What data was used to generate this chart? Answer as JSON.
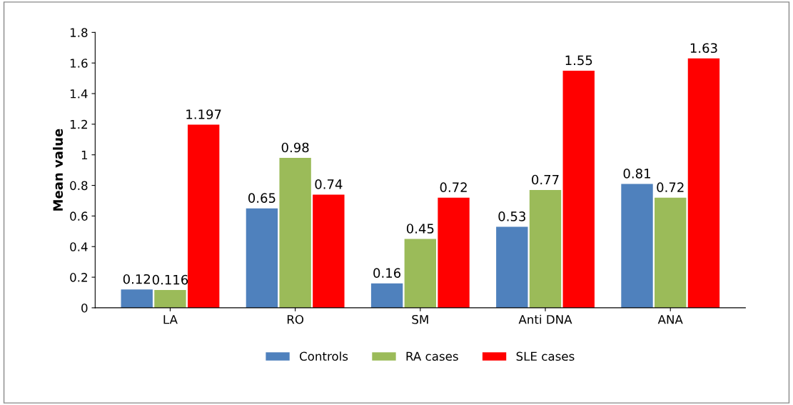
{
  "chart_data": {
    "type": "bar",
    "ylabel": "Mean value",
    "categories": [
      "LA",
      "RO",
      "SM",
      "Anti DNA",
      "ANA"
    ],
    "series": [
      {
        "name": "Controls",
        "color": "#4f81bd",
        "values": [
          0.12,
          0.65,
          0.16,
          0.53,
          0.81
        ]
      },
      {
        "name": "RA cases",
        "color": "#9bbb59",
        "values": [
          0.116,
          0.98,
          0.45,
          0.77,
          0.72
        ]
      },
      {
        "name": "SLE cases",
        "color": "#ff0000",
        "values": [
          1.197,
          0.74,
          0.72,
          1.55,
          1.63
        ]
      }
    ],
    "ylim": [
      0,
      1.8
    ],
    "yticks": [
      0,
      0.2,
      0.4,
      0.6,
      0.8,
      1,
      1.2,
      1.4,
      1.6,
      1.8
    ],
    "data_labels": true,
    "grid": false,
    "legend": "bottom"
  }
}
